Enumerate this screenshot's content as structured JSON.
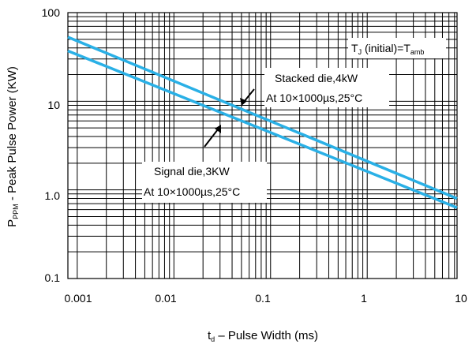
{
  "chart_data": {
    "type": "line",
    "x_scale": "log",
    "y_scale": "log",
    "xlim": [
      0.0008,
      8.5
    ],
    "ylim": [
      0.1,
      100
    ],
    "grid": true,
    "x_ticks": [
      "0.001",
      "0.01",
      "0.1",
      "1",
      "10"
    ],
    "x_tick_values": [
      0.001,
      0.01,
      0.1,
      1,
      10
    ],
    "y_ticks": [
      "100",
      "10",
      "1.0",
      "0.1"
    ],
    "y_tick_values": [
      100,
      10,
      1,
      0.1
    ],
    "xlabel": {
      "pre": "t",
      "sub": "d",
      "post": " – Pulse Width (ms)"
    },
    "ylabel": {
      "pre": "P",
      "sub": "PPM",
      "post": " - Peak Pulse Power (KW)"
    },
    "line_color": "#2ab0e6",
    "series": [
      {
        "x": [
          0.0008,
          8.5
        ],
        "y": [
          53,
          0.8
        ]
      },
      {
        "x": [
          0.0008,
          8.5
        ],
        "y": [
          37,
          0.63
        ]
      }
    ],
    "annotations": {
      "tj": {
        "pre": "T",
        "sub1": "J",
        "mid": " (initial)=T",
        "sub2": "amb"
      },
      "stacked_line1": "Stacked die,4kW",
      "stacked_line2": "At 10×1000µs,25°C",
      "signal_line1": "Signal die,3KW",
      "signal_line2": "At 10×1000µs,25°C"
    }
  }
}
